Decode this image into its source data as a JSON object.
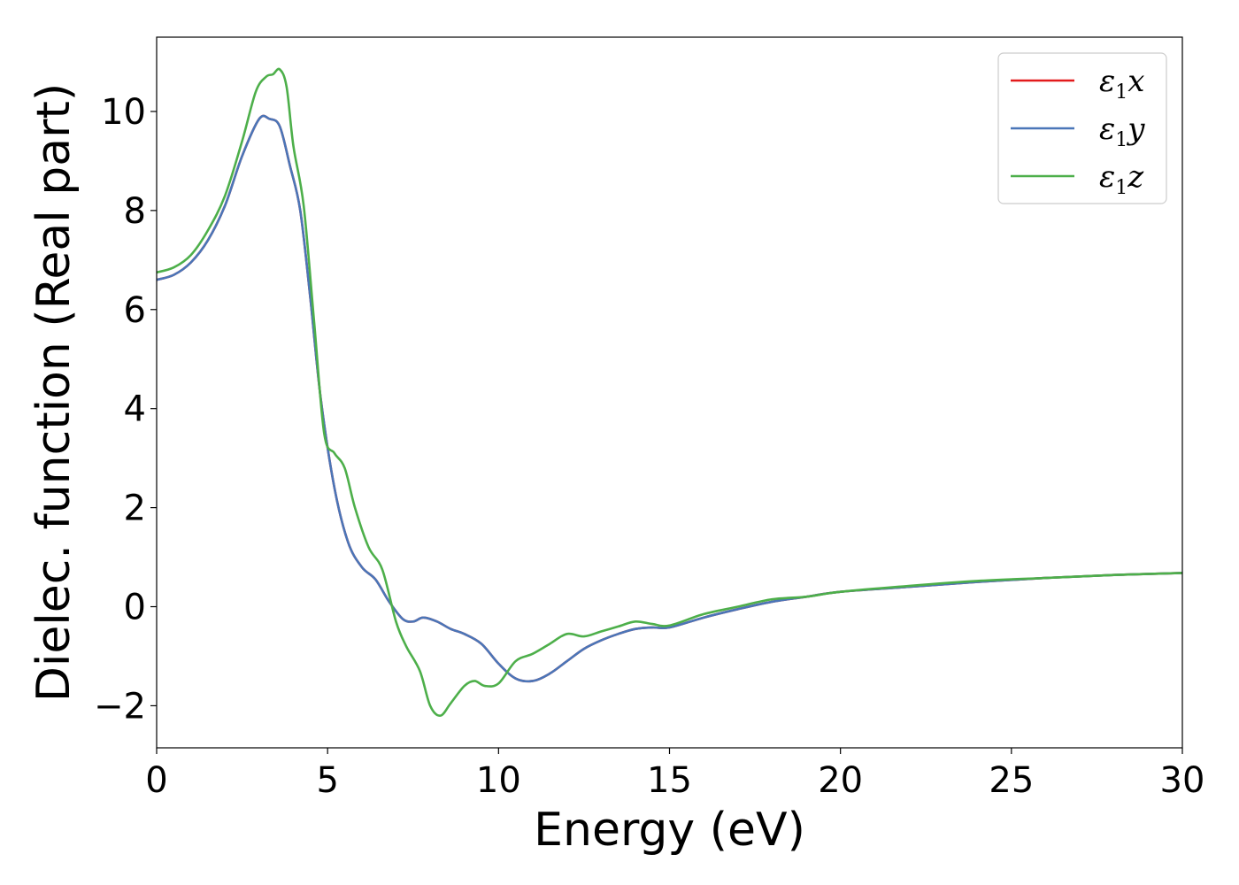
{
  "chart_data": {
    "type": "line",
    "xlabel": "Energy (eV)",
    "ylabel": "Dielec. function (Real part)",
    "xlim": [
      0,
      30
    ],
    "ylim": [
      -2.85,
      11.5
    ],
    "xticks": [
      0,
      5,
      10,
      15,
      20,
      25,
      30
    ],
    "yticks": [
      -2,
      0,
      2,
      4,
      6,
      8,
      10
    ],
    "xtick_labels": [
      "0",
      "5",
      "10",
      "15",
      "20",
      "25",
      "30"
    ],
    "ytick_labels": [
      "−2",
      "0",
      "2",
      "4",
      "6",
      "8",
      "10"
    ],
    "grid": false,
    "legend_position": "top-right",
    "series": [
      {
        "name": "ε₁x",
        "name_base": "ε",
        "name_sub": "1",
        "name_tail": "x",
        "color": "#e31a1c",
        "x": [
          0,
          0.5,
          1,
          1.5,
          2,
          2.5,
          3,
          3.3,
          3.6,
          3.9,
          4.2,
          4.5,
          4.8,
          5.2,
          5.6,
          6,
          6.4,
          6.8,
          7.2,
          7.5,
          7.8,
          8.2,
          8.6,
          9,
          9.5,
          10,
          10.5,
          11,
          11.5,
          12,
          12.5,
          13,
          13.5,
          14,
          14.5,
          15,
          16,
          17,
          18,
          19,
          20,
          22,
          24,
          26,
          28,
          30
        ],
        "y": [
          6.6,
          6.7,
          6.95,
          7.4,
          8.1,
          9.1,
          9.85,
          9.85,
          9.7,
          8.9,
          8.0,
          6.2,
          4.2,
          2.4,
          1.3,
          0.8,
          0.55,
          0.1,
          -0.25,
          -0.3,
          -0.22,
          -0.3,
          -0.45,
          -0.55,
          -0.75,
          -1.15,
          -1.45,
          -1.5,
          -1.35,
          -1.1,
          -0.85,
          -0.68,
          -0.55,
          -0.45,
          -0.42,
          -0.42,
          -0.22,
          -0.05,
          0.1,
          0.2,
          0.3,
          0.4,
          0.5,
          0.58,
          0.64,
          0.68
        ]
      },
      {
        "name": "ε₁y",
        "name_base": "ε",
        "name_sub": "1",
        "name_tail": "y",
        "color": "#4a76b8",
        "x": [
          0,
          0.5,
          1,
          1.5,
          2,
          2.5,
          3,
          3.3,
          3.6,
          3.9,
          4.2,
          4.5,
          4.8,
          5.2,
          5.6,
          6,
          6.4,
          6.8,
          7.2,
          7.5,
          7.8,
          8.2,
          8.6,
          9,
          9.5,
          10,
          10.5,
          11,
          11.5,
          12,
          12.5,
          13,
          13.5,
          14,
          14.5,
          15,
          16,
          17,
          18,
          19,
          20,
          22,
          24,
          26,
          28,
          30
        ],
        "y": [
          6.6,
          6.7,
          6.95,
          7.4,
          8.1,
          9.1,
          9.85,
          9.85,
          9.7,
          8.9,
          8.0,
          6.2,
          4.2,
          2.4,
          1.3,
          0.8,
          0.55,
          0.1,
          -0.25,
          -0.3,
          -0.22,
          -0.3,
          -0.45,
          -0.55,
          -0.75,
          -1.15,
          -1.45,
          -1.5,
          -1.35,
          -1.1,
          -0.85,
          -0.68,
          -0.55,
          -0.45,
          -0.42,
          -0.42,
          -0.22,
          -0.05,
          0.1,
          0.2,
          0.3,
          0.4,
          0.5,
          0.58,
          0.64,
          0.68
        ]
      },
      {
        "name": "ε₁z",
        "name_base": "ε",
        "name_sub": "1",
        "name_tail": "z",
        "color": "#4daf4a",
        "x": [
          0,
          0.5,
          1,
          1.5,
          2,
          2.5,
          2.9,
          3.2,
          3.4,
          3.6,
          3.8,
          4.0,
          4.3,
          4.6,
          4.9,
          5.2,
          5.5,
          5.8,
          6.2,
          6.6,
          7.0,
          7.3,
          7.7,
          8.0,
          8.3,
          8.6,
          9.0,
          9.3,
          9.6,
          10.0,
          10.5,
          11.0,
          11.5,
          12.0,
          12.5,
          13.0,
          13.5,
          14.0,
          14.5,
          15.0,
          16.0,
          17.0,
          18.0,
          19.0,
          20.0,
          22.0,
          24.0,
          26.0,
          28.0,
          30.0
        ],
        "y": [
          6.75,
          6.85,
          7.1,
          7.6,
          8.3,
          9.4,
          10.4,
          10.7,
          10.75,
          10.85,
          10.5,
          9.3,
          8.1,
          5.8,
          3.5,
          3.1,
          2.8,
          2.0,
          1.2,
          0.75,
          -0.3,
          -0.8,
          -1.3,
          -2.0,
          -2.2,
          -1.95,
          -1.6,
          -1.5,
          -1.6,
          -1.55,
          -1.1,
          -0.95,
          -0.75,
          -0.55,
          -0.6,
          -0.5,
          -0.4,
          -0.3,
          -0.35,
          -0.38,
          -0.15,
          0.0,
          0.15,
          0.2,
          0.3,
          0.42,
          0.52,
          0.58,
          0.64,
          0.68
        ]
      }
    ]
  }
}
